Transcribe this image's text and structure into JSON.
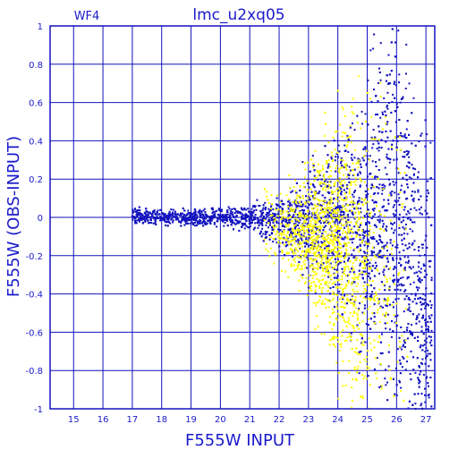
{
  "chart_data": {
    "type": "scatter",
    "title": "lmc_u2xq05",
    "chip_label": "WF4",
    "xlabel": "F555W INPUT",
    "ylabel": "F555W (OBS-INPUT)",
    "xlim": [
      14.2,
      27.3
    ],
    "ylim": [
      -1.0,
      1.0
    ],
    "xticks": [
      15,
      16,
      17,
      18,
      19,
      20,
      21,
      22,
      23,
      24,
      25,
      26,
      27
    ],
    "yticks": [
      1,
      0.8,
      0.6,
      0.4,
      0.2,
      0,
      -0.2,
      -0.4,
      -0.6,
      -0.8,
      -1
    ],
    "grid": true,
    "series": [
      {
        "color": "#1212bf",
        "marker": "dot",
        "description_points": [
          {
            "x": 17.0,
            "y": 0.0,
            "spread": 0.02
          },
          {
            "x": 19.0,
            "y": 0.0,
            "spread": 0.02
          },
          {
            "x": 21.0,
            "y": 0.0,
            "spread": 0.03
          },
          {
            "x": 22.0,
            "y": -0.02,
            "spread": 0.06
          },
          {
            "x": 23.0,
            "y": -0.03,
            "spread": 0.12
          },
          {
            "x": 24.0,
            "y": -0.03,
            "spread": 0.2
          },
          {
            "x": 25.0,
            "y": 0.0,
            "spread": 0.35
          },
          {
            "x": 26.0,
            "y": 0.05,
            "spread": 0.5
          },
          {
            "x": 27.0,
            "y": -0.6,
            "spread": 0.4
          }
        ]
      },
      {
        "color": "#ffff00",
        "marker": "dot",
        "description_points": [
          {
            "x": 22.0,
            "y": -0.05,
            "spread": 0.1
          },
          {
            "x": 23.0,
            "y": -0.07,
            "spread": 0.15
          },
          {
            "x": 24.0,
            "y": -0.15,
            "spread": 0.3
          },
          {
            "x": 25.0,
            "y": -0.3,
            "spread": 0.45
          },
          {
            "x": 26.0,
            "y": -0.4,
            "spread": 0.5
          }
        ]
      }
    ]
  }
}
